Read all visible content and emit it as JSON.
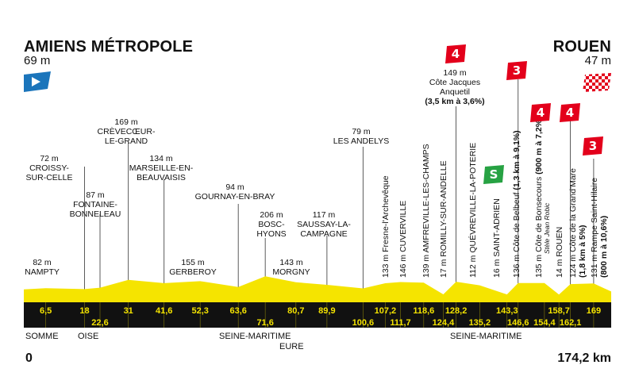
{
  "start": {
    "name": "AMIENS MÉTROPOLE",
    "altitude": "69 m",
    "km": "0"
  },
  "finish": {
    "name": "ROUEN",
    "altitude": "47 m",
    "km": "174,2 km"
  },
  "regions": {
    "somme": "SOMME",
    "oise": "OISE",
    "seine_maritime_1": "SEINE-MARITIME",
    "eure": "EURE",
    "seine_maritime_2": "SEINE-MARITIME"
  },
  "places": [
    {
      "alt": "82 m",
      "name": "NAMPTY"
    },
    {
      "alt": "72 m",
      "name": "CROISSY-\nSUR-CELLE"
    },
    {
      "alt": "87 m",
      "name": "FONTAINE-\nBONNELEAU"
    },
    {
      "alt": "169 m",
      "name": "CRÈVECŒUR-\nLE-GRAND"
    },
    {
      "alt": "134 m",
      "name": "MARSEILLE-EN-\nBEAUVAISIS"
    },
    {
      "alt": "155 m",
      "name": "GERBEROY"
    },
    {
      "alt": "94 m",
      "name": "GOURNAY-EN-BRAY"
    },
    {
      "alt": "206 m",
      "name": "BOSC-\nHYONS"
    },
    {
      "alt": "143 m",
      "name": "MORGNY"
    },
    {
      "alt": "117 m",
      "name": "SAUSSAY-LA-\nCAMPAGNE"
    },
    {
      "alt": "79 m",
      "name": "LES ANDELYS"
    }
  ],
  "vertical_places": [
    {
      "text": "133 m Fresne-l'Archevêque"
    },
    {
      "text": "146 m CUVERVILLE"
    },
    {
      "text": "139 m AMFREVILLE-LES-CHAMPS"
    },
    {
      "text": "17 m ROMILLY-SUR-ANDELLE"
    },
    {
      "text": "112 m QUÉVREVILLE-LA-POTERIE"
    },
    {
      "text": "16 m SAINT-ADRIEN"
    },
    {
      "text": "136 m Côte de Belbeuf",
      "detail": "(1,3 km à 9,1%)"
    },
    {
      "text": "135 m Côte de Bonsecours",
      "sub": "Stèle Jean Robic",
      "detail": "(900 m à 7,2%)"
    },
    {
      "text": "14 m ROUEN"
    },
    {
      "text": "124 m Côte de la Grand'Mare",
      "detail": "(1,8 km à 5%)"
    },
    {
      "text": "131 m Rampe Saint-Hilaire",
      "detail": "(800 m à 10,6%)"
    }
  ],
  "climb_jacques": {
    "alt": "149 m",
    "name1": "Côte Jacques",
    "name2": "Anquetil",
    "detail": "(3,5 km à 3,6%)"
  },
  "flags": {
    "f1": "4",
    "f2": "3",
    "f3": "4",
    "f4": "4",
    "f5": "3",
    "sprint": "S"
  },
  "colors": {
    "profile": "#f5e400",
    "band": "#111111",
    "km_text": "#f5e400",
    "climb_flag": "#e3001b",
    "sprint_flag": "#27a243",
    "start_flag": "#1b75bb"
  },
  "chart_data": {
    "type": "area",
    "title": "",
    "xlabel": "",
    "ylabel": "",
    "x_unit": "km",
    "y_unit": "m",
    "xlim": [
      0,
      174.2
    ],
    "km_markers": [
      6.5,
      18,
      22.6,
      31,
      41.6,
      52.3,
      63.6,
      71.6,
      80.7,
      89.9,
      100.6,
      107.2,
      111.7,
      118.6,
      124.4,
      128.2,
      135.2,
      143.3,
      146.6,
      154.4,
      158.7,
      162.1,
      169
    ],
    "km_labels_top": [
      "6,5",
      "18",
      "31",
      "41,6",
      "52,3",
      "63,6",
      "80,7",
      "89,9",
      "107,2",
      "118,6",
      "128,2",
      "143,3",
      "158,7",
      "169"
    ],
    "km_labels_bottom": [
      "22,6",
      "71,6",
      "100,6",
      "111,7",
      "124,4",
      "135,2",
      "146,6",
      "154,4",
      "162,1"
    ],
    "profile": [
      {
        "x": 0,
        "y": 69
      },
      {
        "x": 6.5,
        "y": 82
      },
      {
        "x": 18,
        "y": 72
      },
      {
        "x": 22.6,
        "y": 87
      },
      {
        "x": 31,
        "y": 169
      },
      {
        "x": 41.6,
        "y": 134
      },
      {
        "x": 52.3,
        "y": 155
      },
      {
        "x": 63.6,
        "y": 94
      },
      {
        "x": 71.6,
        "y": 206
      },
      {
        "x": 80.7,
        "y": 143
      },
      {
        "x": 89.9,
        "y": 117
      },
      {
        "x": 100.6,
        "y": 79
      },
      {
        "x": 107.2,
        "y": 133
      },
      {
        "x": 111.7,
        "y": 146
      },
      {
        "x": 118.6,
        "y": 139
      },
      {
        "x": 124.4,
        "y": 17
      },
      {
        "x": 128.2,
        "y": 149
      },
      {
        "x": 135.2,
        "y": 112
      },
      {
        "x": 143.3,
        "y": 16
      },
      {
        "x": 146.6,
        "y": 136
      },
      {
        "x": 154.4,
        "y": 135
      },
      {
        "x": 158.7,
        "y": 14
      },
      {
        "x": 162.1,
        "y": 124
      },
      {
        "x": 169,
        "y": 131
      },
      {
        "x": 174.2,
        "y": 47
      }
    ]
  }
}
